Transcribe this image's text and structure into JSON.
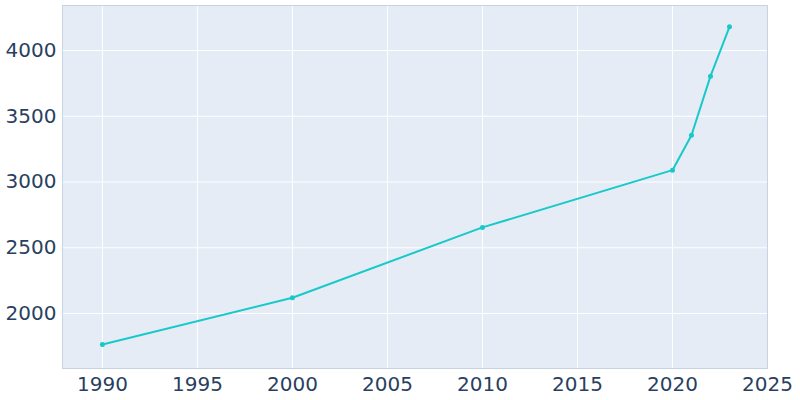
{
  "chart_data": {
    "type": "line",
    "x": [
      1990,
      2000,
      2010,
      2020,
      2021,
      2022,
      2023
    ],
    "values": [
      1765,
      2120,
      2655,
      3090,
      3355,
      3805,
      4180
    ],
    "color": "#17c9c9",
    "marker": "circle",
    "xlim": [
      1987.9,
      2025
    ],
    "ylim": [
      1582,
      4342
    ],
    "xticks": [
      1990,
      1995,
      2000,
      2005,
      2010,
      2015,
      2020,
      2025
    ],
    "yticks": [
      2000,
      2500,
      3000,
      3500,
      4000
    ],
    "grid": true
  }
}
